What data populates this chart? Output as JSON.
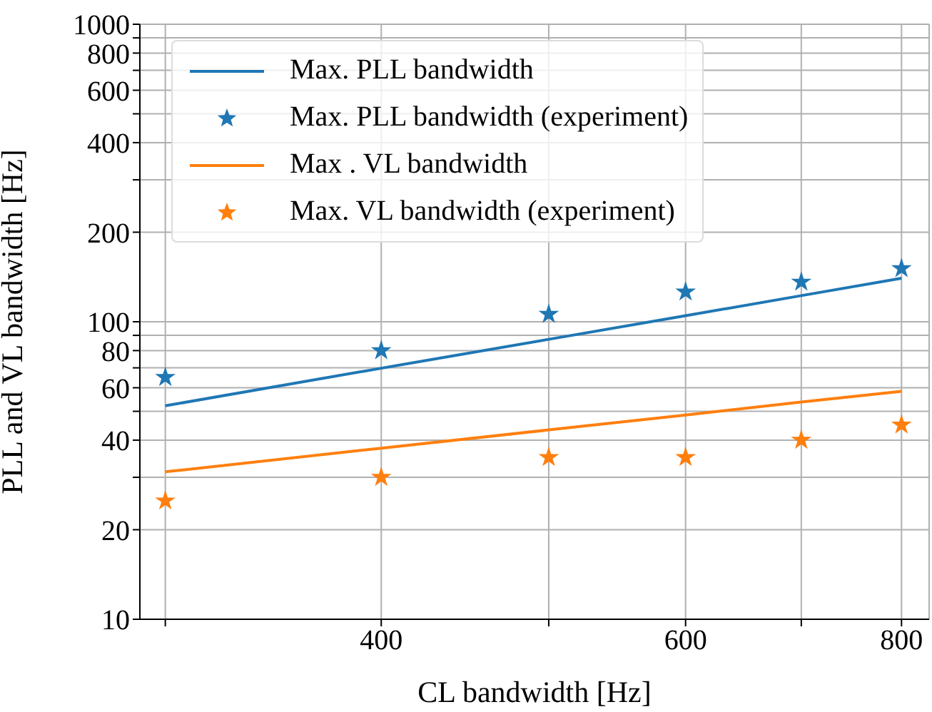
{
  "chart_data": {
    "type": "scatter",
    "xlabel": "CL bandwidth [Hz]",
    "ylabel": "PLL and VL bandwidth [Hz]",
    "log": "xy",
    "grid": true,
    "legend": "top left",
    "xlim": [
      290,
      830
    ],
    "xticks": [
      {
        "value": 300,
        "label": null
      },
      400,
      {
        "value": 500,
        "label": null
      },
      600,
      {
        "value": 700,
        "label": null
      },
      800
    ],
    "ylim": [
      10,
      1000
    ],
    "yticks": [
      10,
      20,
      {
        "value": 30,
        "label": null
      },
      40,
      {
        "value": 50,
        "label": null
      },
      60,
      {
        "value": 70,
        "label": null
      },
      80,
      {
        "value": 90,
        "label": null
      },
      100,
      200,
      {
        "value": 300,
        "label": null
      },
      400,
      {
        "value": 500,
        "label": null
      },
      600,
      {
        "value": 700,
        "label": null
      },
      800,
      {
        "value": 900,
        "label": null
      },
      1000
    ],
    "x": [
      300,
      400,
      500,
      600,
      700,
      800
    ],
    "series": [
      {
        "name": "Max. PLL bandwidth",
        "type": "line",
        "marker": "none",
        "color": "#1f77b4",
        "values": [
          52.2,
          69.8,
          87.3,
          104.8,
          122.4,
          140
        ]
      },
      {
        "name": "Max. PLL bandwidth (experiment)",
        "type": "scatter",
        "marker": "star",
        "color": "#1f77b4",
        "values": [
          65,
          80,
          106,
          126,
          136,
          151
        ]
      },
      {
        "name": "Max . VL bandwidth",
        "type": "line",
        "marker": "none",
        "color": "#ff7f0e",
        "values": [
          31.3,
          37.6,
          43.3,
          48.6,
          53.7,
          58.4
        ]
      },
      {
        "name": "Max. VL bandwidth (experiment)",
        "type": "scatter",
        "marker": "star",
        "color": "#ff7f0e",
        "values": [
          25,
          30,
          35,
          35,
          40,
          45
        ]
      }
    ]
  }
}
